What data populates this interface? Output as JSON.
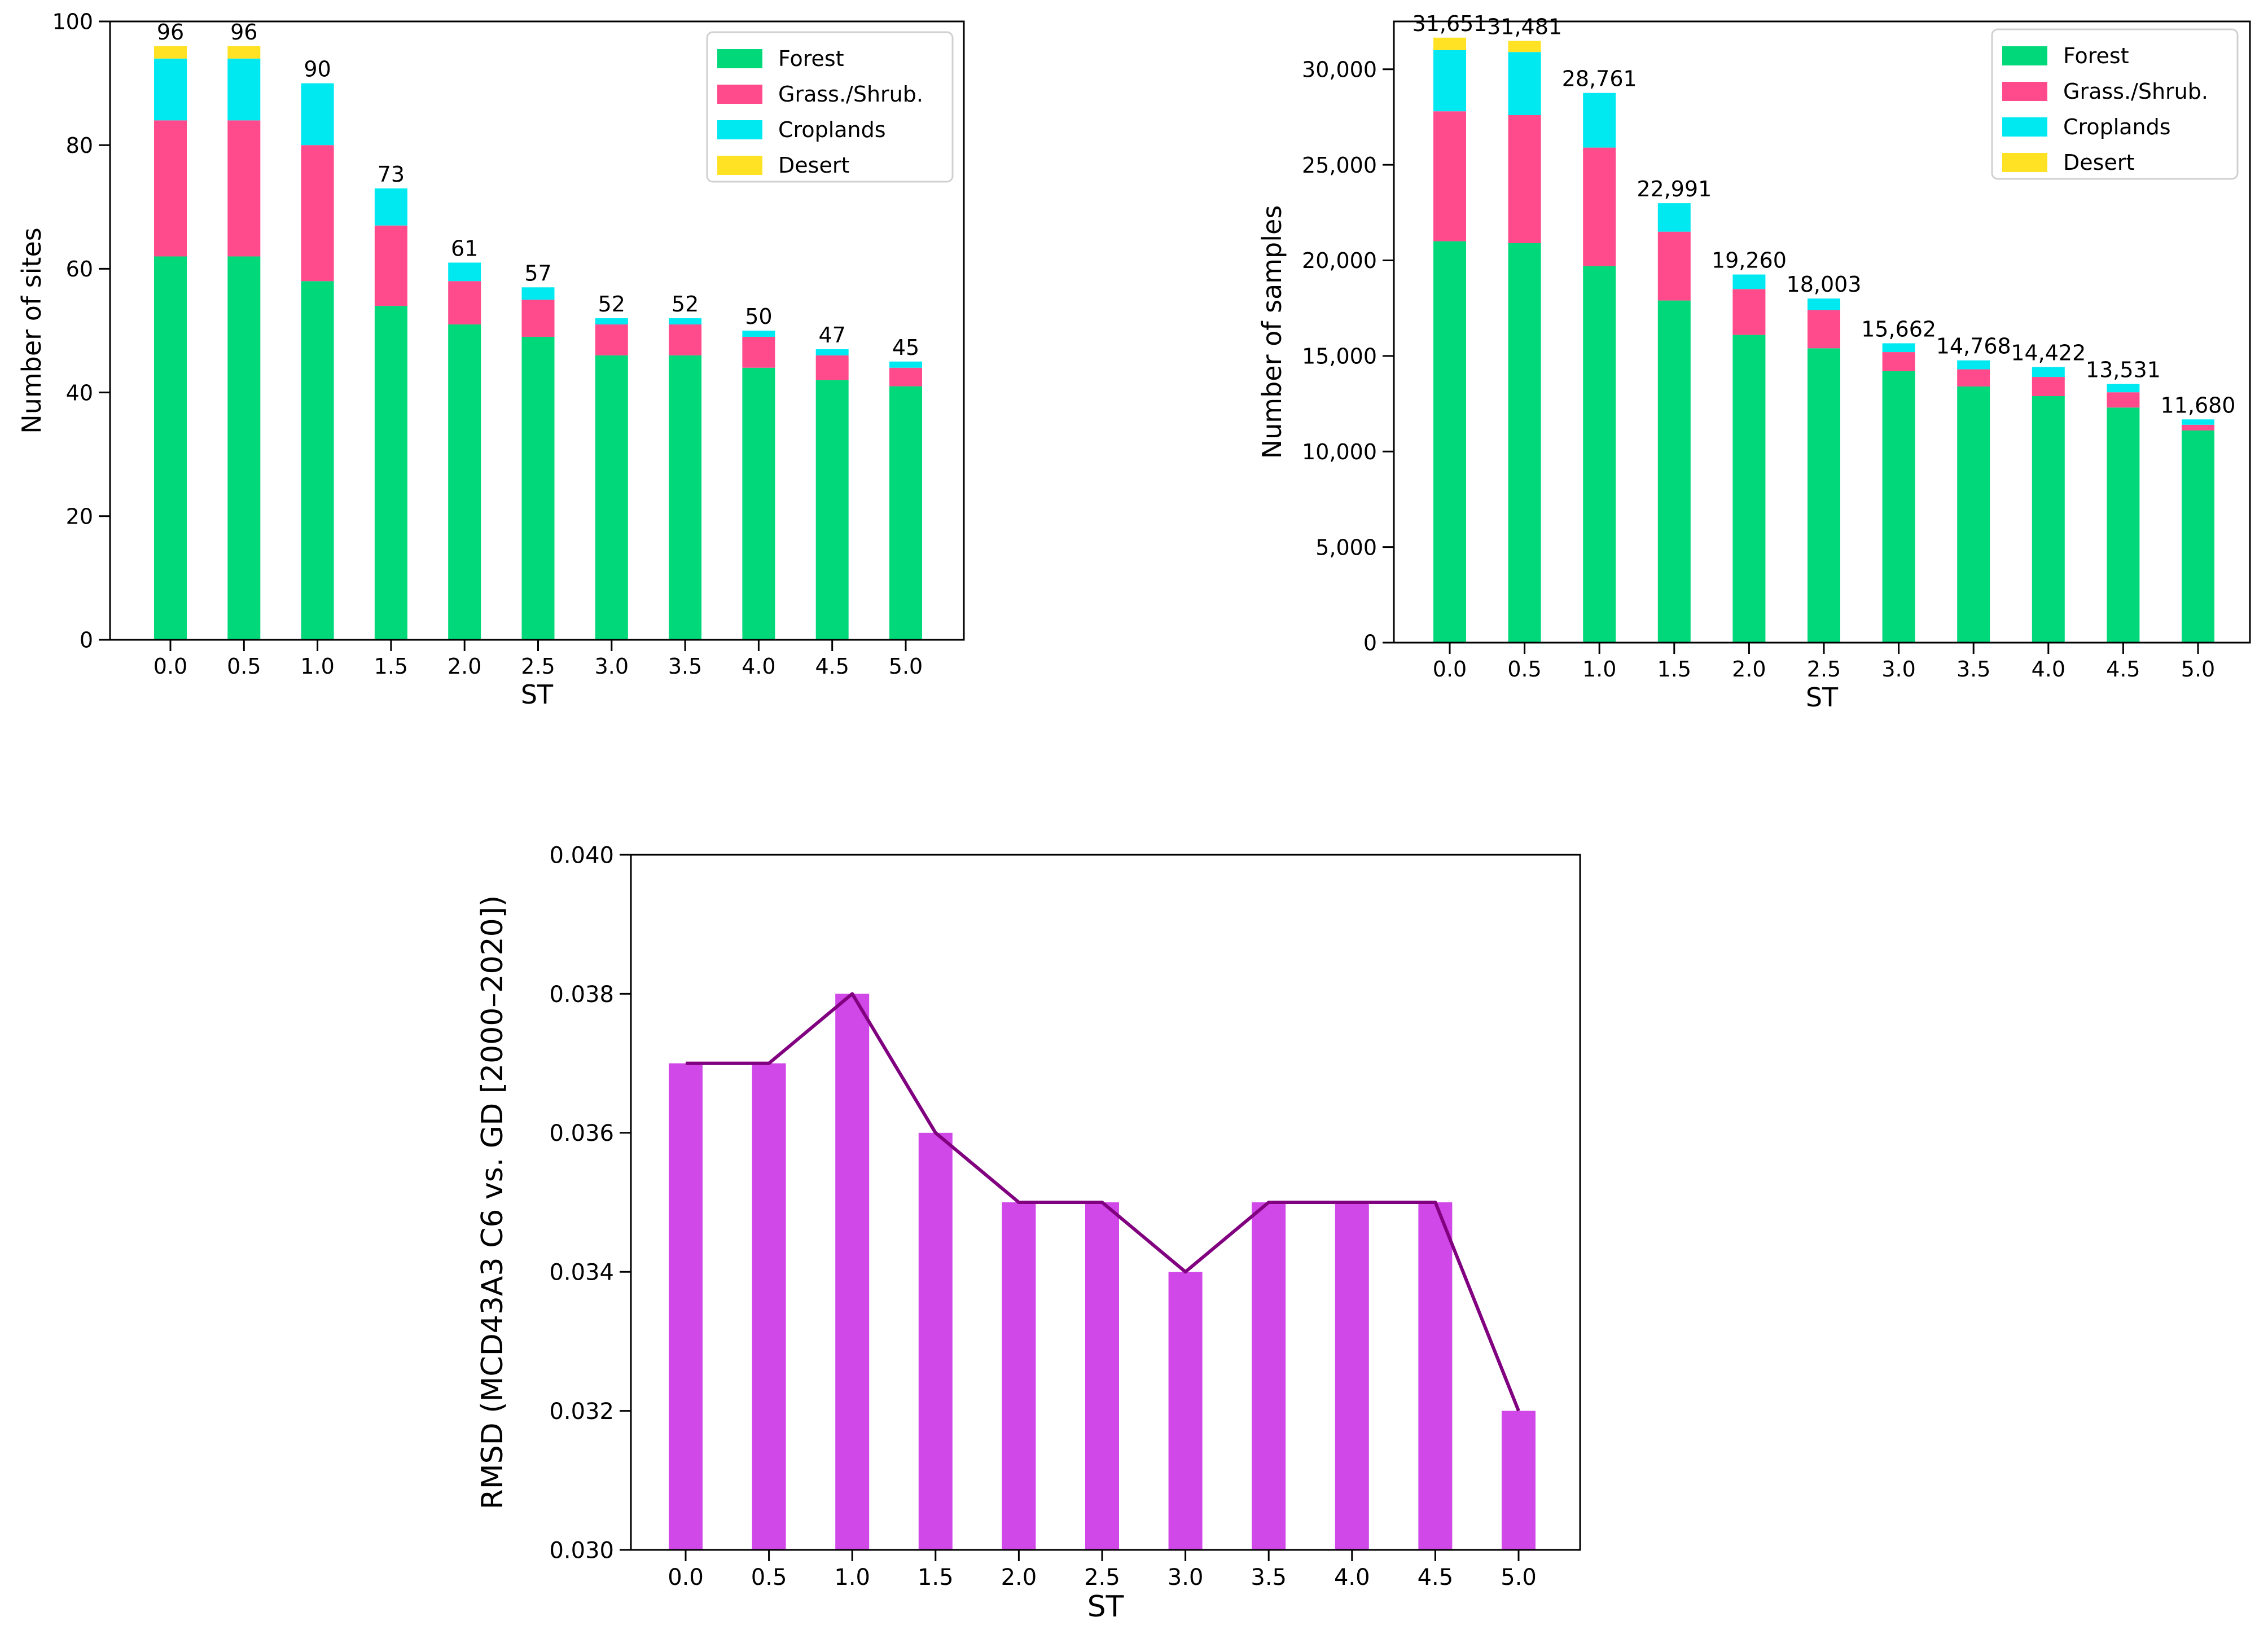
{
  "chart_data": [
    {
      "type": "bar",
      "stacked": true,
      "categories": [
        "0.0",
        "0.5",
        "1.0",
        "1.5",
        "2.0",
        "2.5",
        "3.0",
        "3.5",
        "4.0",
        "4.5",
        "5.0"
      ],
      "series": [
        {
          "name": "Forest",
          "color": "#00d87a",
          "values": [
            62,
            62,
            58,
            54,
            51,
            49,
            46,
            46,
            44,
            42,
            41
          ]
        },
        {
          "name": "Grass./Shrub.",
          "color": "#ff4a8b",
          "values": [
            22,
            22,
            22,
            13,
            7,
            6,
            5,
            5,
            5,
            4,
            3
          ]
        },
        {
          "name": "Croplands",
          "color": "#00e8f0",
          "values": [
            10,
            10,
            10,
            6,
            3,
            2,
            1,
            1,
            1,
            1,
            1
          ]
        },
        {
          "name": "Desert",
          "color": "#ffe224",
          "values": [
            2,
            2,
            0,
            0,
            0,
            0,
            0,
            0,
            0,
            0,
            0
          ]
        }
      ],
      "totals": [
        "96",
        "96",
        "90",
        "73",
        "61",
        "57",
        "52",
        "52",
        "50",
        "47",
        "45"
      ],
      "xlabel": "ST",
      "ylabel": "Number of sites",
      "ylim": [
        0,
        100
      ],
      "yticks": [
        "0",
        "20",
        "40",
        "60",
        "80",
        "100"
      ],
      "legend": "top-right"
    },
    {
      "type": "bar",
      "stacked": true,
      "categories": [
        "0.0",
        "0.5",
        "1.0",
        "1.5",
        "2.0",
        "2.5",
        "3.0",
        "3.5",
        "4.0",
        "4.5",
        "5.0"
      ],
      "series": [
        {
          "name": "Forest",
          "color": "#00d87a",
          "values": [
            21000,
            20900,
            19700,
            17900,
            16100,
            15400,
            14200,
            13400,
            12900,
            12300,
            11100
          ]
        },
        {
          "name": "Grass./Shrub.",
          "color": "#ff4a8b",
          "values": [
            6800,
            6700,
            6200,
            3600,
            2400,
            2000,
            1000,
            900,
            1000,
            800,
            300
          ]
        },
        {
          "name": "Croplands",
          "color": "#00e8f0",
          "values": [
            3200,
            3300,
            2861,
            1491,
            760,
            603,
            462,
            468,
            522,
            431,
            280
          ]
        },
        {
          "name": "Desert",
          "color": "#ffe224",
          "values": [
            651,
            581,
            0,
            0,
            0,
            0,
            0,
            0,
            0,
            0,
            0
          ]
        }
      ],
      "totals": [
        "31,651",
        "31,481",
        "28,761",
        "22,991",
        "19,260",
        "18,003",
        "15,662",
        "14,768",
        "14,422",
        "13,531",
        "11,680"
      ],
      "xlabel": "ST",
      "ylabel": "Number of samples",
      "ylim": [
        0,
        32500
      ],
      "yticks": [
        "0",
        "5,000",
        "10,000",
        "15,000",
        "20,000",
        "25,000",
        "30,000"
      ],
      "legend": "top-right"
    },
    {
      "type": "bar",
      "categories": [
        "0.0",
        "0.5",
        "1.0",
        "1.5",
        "2.0",
        "2.5",
        "3.0",
        "3.5",
        "4.0",
        "4.5",
        "5.0"
      ],
      "values": [
        0.037,
        0.037,
        0.038,
        0.036,
        0.035,
        0.035,
        0.034,
        0.035,
        0.035,
        0.035,
        0.032
      ],
      "overlay_line": true,
      "bar_color": "#d048e8",
      "line_color": "#800080",
      "xlabel": "ST",
      "ylabel": "RMSD (MCD43A3 C6 vs. GD [2000–2020])",
      "ylim": [
        0.03,
        0.04
      ],
      "yticks": [
        "0.030",
        "0.032",
        "0.034",
        "0.036",
        "0.038",
        "0.040"
      ]
    }
  ]
}
